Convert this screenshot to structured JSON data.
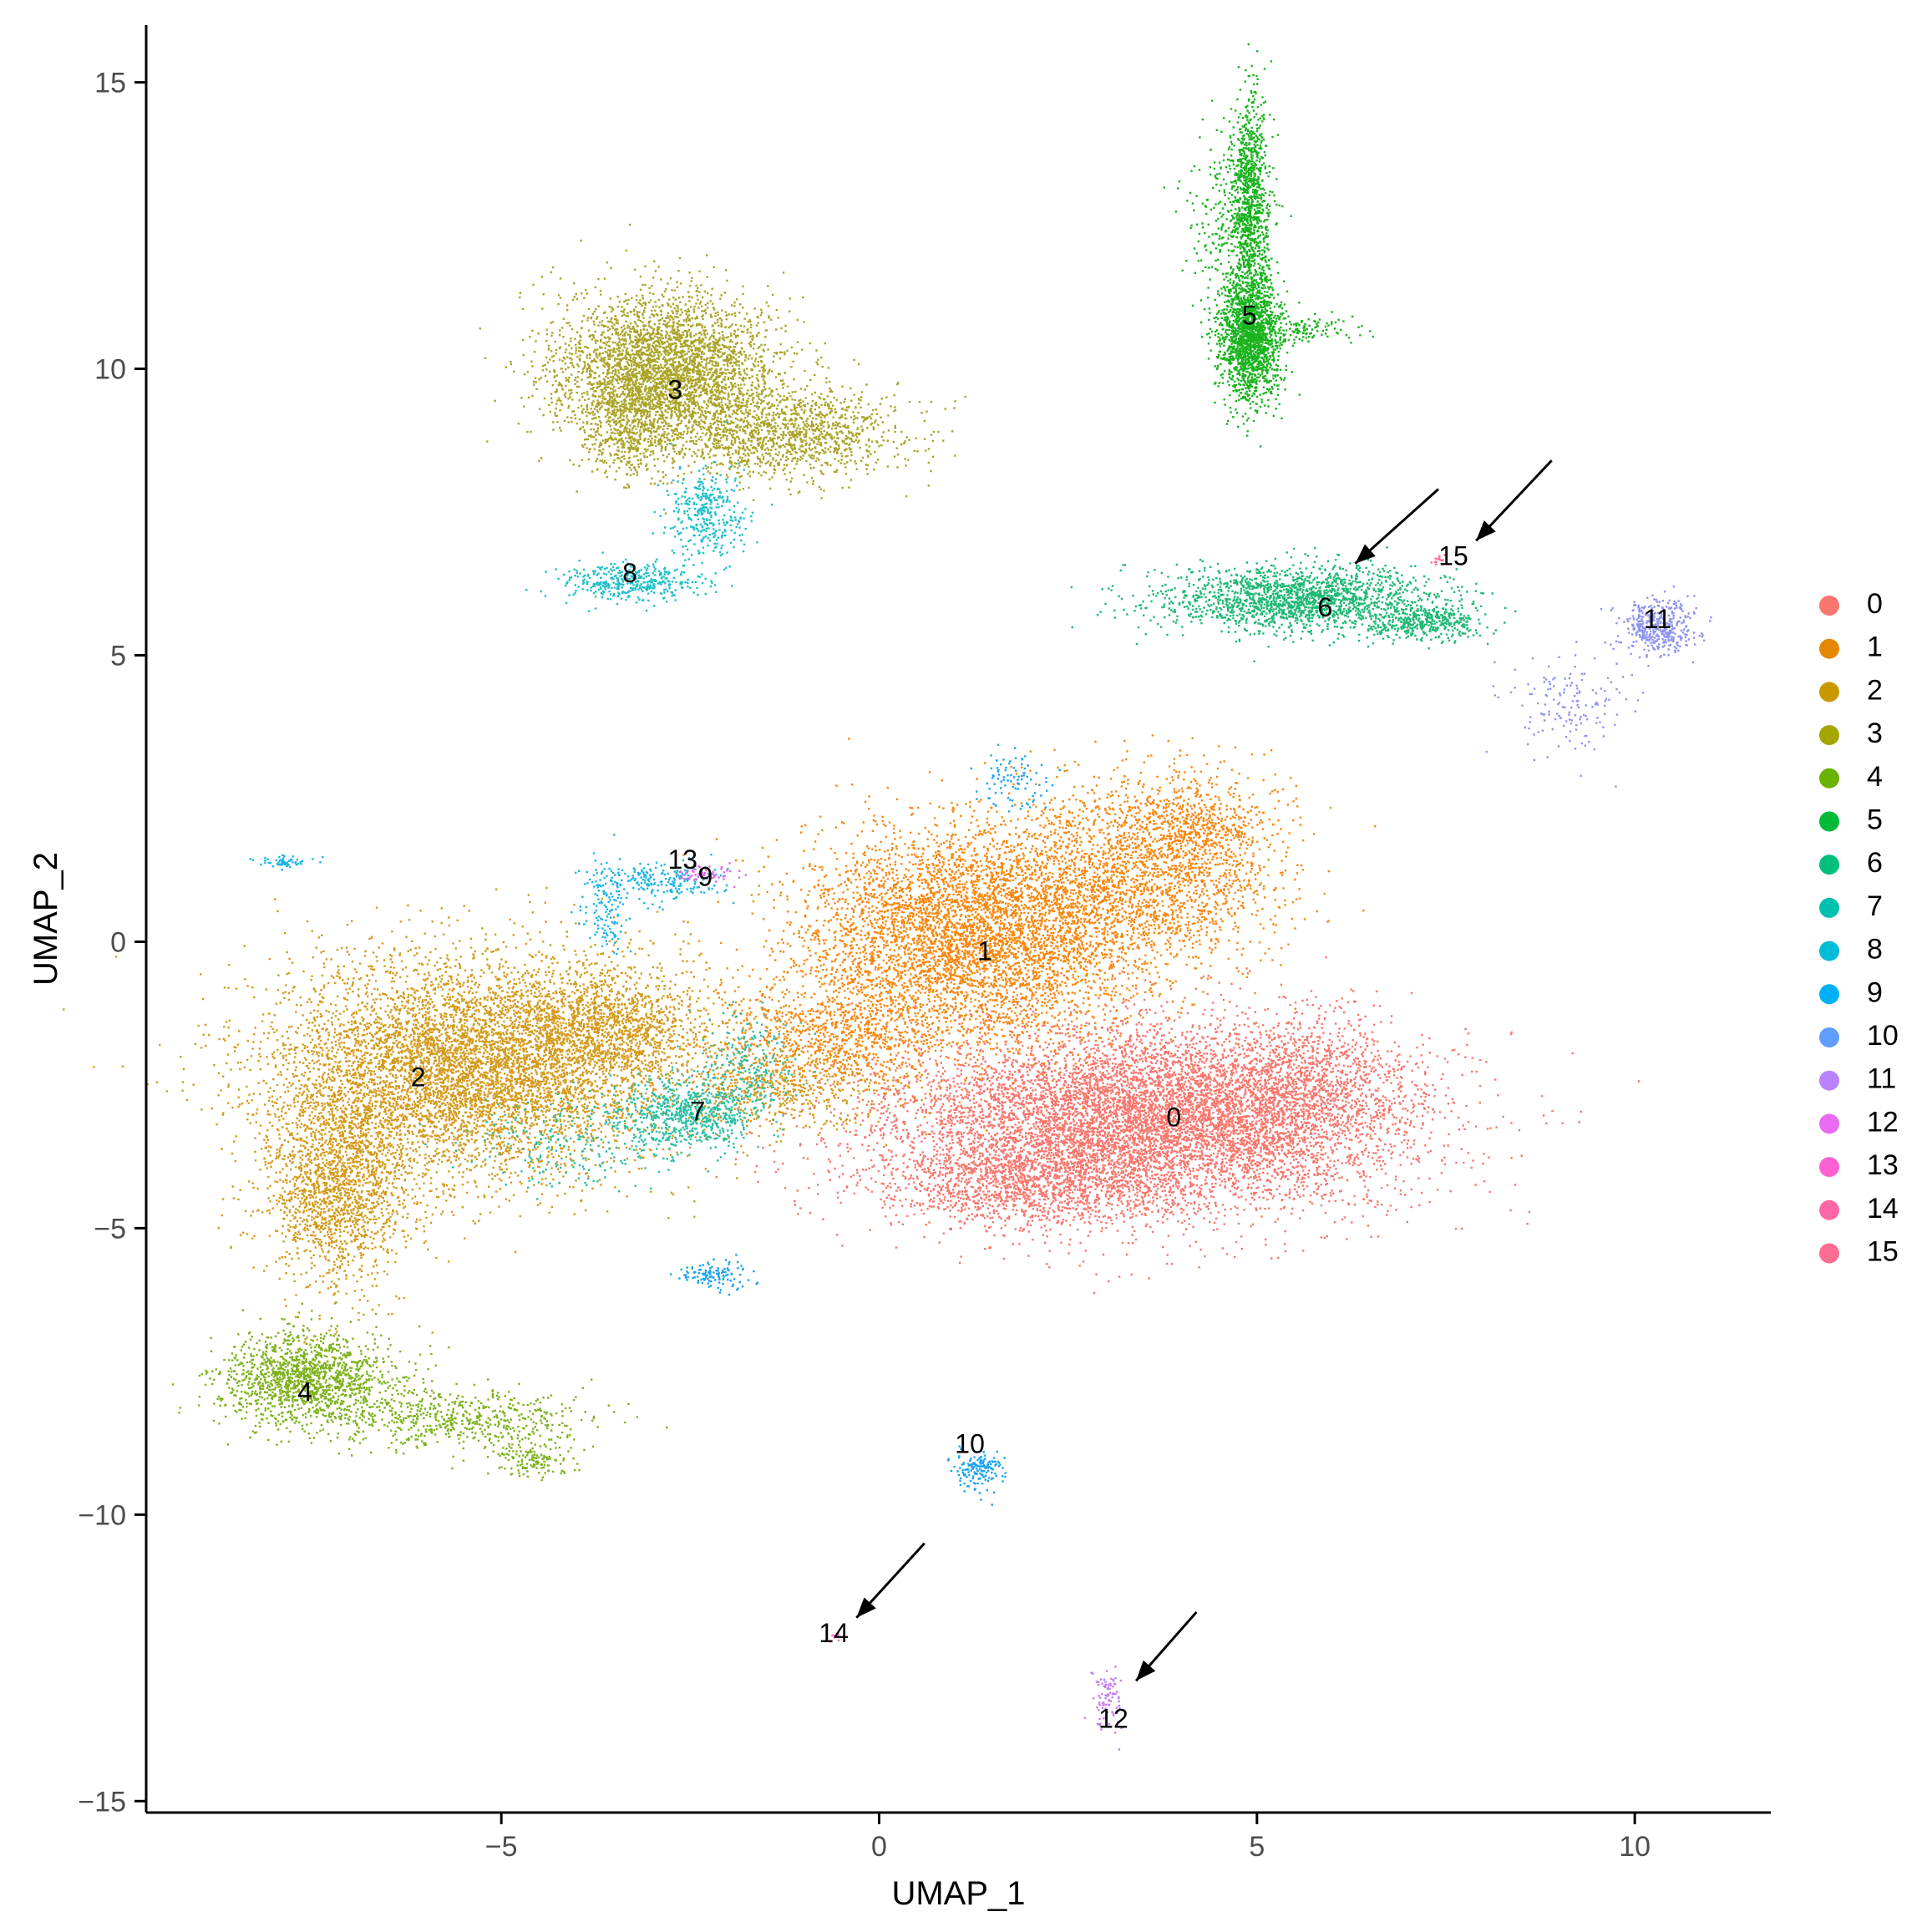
{
  "chart_data": {
    "type": "scatter",
    "xlabel": "UMAP_1",
    "ylabel": "UMAP_2",
    "xlim": [
      -9.7,
      11.8
    ],
    "ylim": [
      -15.2,
      16.0
    ],
    "xticks": [
      -5,
      0,
      5,
      10
    ],
    "yticks": [
      -15,
      -10,
      -5,
      0,
      5,
      10,
      15
    ],
    "xtick_labels": [
      "−5",
      "0",
      "5",
      "10"
    ],
    "ytick_labels": [
      "−15",
      "−10",
      "−5",
      "0",
      "5",
      "10",
      "15"
    ],
    "grid": false,
    "legend_position": "right",
    "clusters": [
      {
        "name": "0",
        "color": "#F8766D",
        "label_xy": [
          3.9,
          -3.1
        ]
      },
      {
        "name": "1",
        "color": "#E58700",
        "label_xy": [
          1.4,
          -0.2
        ]
      },
      {
        "name": "2",
        "color": "#C99800",
        "label_xy": [
          -6.1,
          -2.4
        ]
      },
      {
        "name": "3",
        "color": "#A3A500",
        "label_xy": [
          -2.7,
          9.6
        ]
      },
      {
        "name": "4",
        "color": "#6BB100",
        "label_xy": [
          -7.6,
          -7.9
        ]
      },
      {
        "name": "5",
        "color": "#00BA38",
        "label_xy": [
          4.9,
          10.9
        ]
      },
      {
        "name": "6",
        "color": "#00BF7D",
        "label_xy": [
          5.9,
          5.8
        ]
      },
      {
        "name": "7",
        "color": "#00C0AF",
        "label_xy": [
          -2.4,
          -3.0
        ]
      },
      {
        "name": "8",
        "color": "#00BCD8",
        "label_xy": [
          -3.3,
          6.4
        ]
      },
      {
        "name": "9",
        "color": "#00B0F6",
        "label_xy": [
          -2.3,
          1.1
        ]
      },
      {
        "name": "10",
        "color": "#619CFF",
        "label_xy": [
          1.2,
          -8.8
        ]
      },
      {
        "name": "11",
        "color": "#B983FF",
        "label_xy": [
          10.3,
          5.6
        ]
      },
      {
        "name": "12",
        "color": "#E76BF3",
        "label_xy": [
          3.1,
          -13.6
        ]
      },
      {
        "name": "13",
        "color": "#FD61D1",
        "label_xy": [
          -2.6,
          1.4
        ]
      },
      {
        "name": "14",
        "color": "#FF67A4",
        "label_xy": [
          -0.6,
          -12.1
        ]
      },
      {
        "name": "15",
        "color": "#FF6C91",
        "label_xy": [
          7.6,
          6.7
        ]
      }
    ],
    "arrows": [
      {
        "from": [
          7.4,
          7.9
        ],
        "to": [
          6.3,
          6.6
        ]
      },
      {
        "from": [
          8.9,
          8.4
        ],
        "to": [
          7.9,
          7.0
        ]
      },
      {
        "from": [
          0.6,
          -10.5
        ],
        "to": [
          -0.3,
          -11.8
        ]
      },
      {
        "from": [
          4.2,
          -11.7
        ],
        "to": [
          3.4,
          -12.9
        ]
      }
    ]
  },
  "point_colors": {
    "0": "#F8766D",
    "1": "#F8870E",
    "2": "#D49A1A",
    "3": "#ABA428",
    "4": "#7DB11A",
    "5": "#1AB31E",
    "6": "#1EB874",
    "7": "#28BEA3",
    "8": "#1EC0C8",
    "9": "#1AB6E6",
    "10": "#1AA3EE",
    "11": "#8E93F0",
    "12": "#C57CF0",
    "13": "#E266E4",
    "14": "#F766C2",
    "15": "#F96B8E"
  }
}
